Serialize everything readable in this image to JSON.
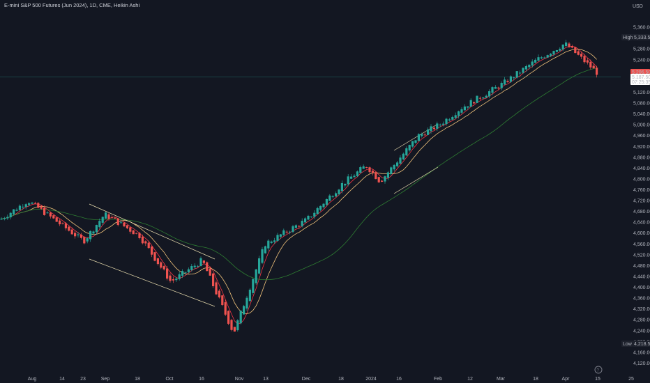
{
  "header": {
    "title": "E-mini S&P 500 Futures (Jun 2024), 1D, CME, Heikin Ashi",
    "currency": "USD"
  },
  "labels": {
    "high_tag": "High",
    "high_value": "5,333.50",
    "low_tag": "Low",
    "low_value": "4,218.50",
    "last_price": "5,206.50",
    "last_price2": "5,187.50",
    "countdown": "07:25:35"
  },
  "colors": {
    "up": "#26a69a",
    "down": "#ef5350",
    "ma_fast": "#f23645",
    "ma_mid": "#f0c27b",
    "ma_slow": "#2e7d32",
    "trendline": "#e8dcae",
    "background": "#131722"
  },
  "chart_data": {
    "type": "candlestick",
    "title": "E-mini S&P 500 Futures (Jun 2024), 1D, CME, Heikin Ashi",
    "y_axis": {
      "min": 4080,
      "max": 5440,
      "ticks": [
        "5,360.00",
        "5,320.00",
        "5,280.00",
        "5,240.00",
        "5,200.00",
        "5,160.00",
        "5,120.00",
        "5,080.00",
        "5,040.00",
        "5,000.00",
        "4,960.00",
        "4,920.00",
        "4,880.00",
        "4,840.00",
        "4,800.00",
        "4,760.00",
        "4,720.00",
        "4,680.00",
        "4,640.00",
        "4,600.00",
        "4,560.00",
        "4,520.00",
        "4,480.00",
        "4,440.00",
        "4,400.00",
        "4,360.00",
        "4,320.00",
        "4,280.00",
        "4,240.00",
        "4,200.00",
        "4,160.00",
        "4,120.00"
      ]
    },
    "x_axis": {
      "ticks": [
        "Aug",
        "14",
        "23",
        "Sep",
        "18",
        "Oct",
        "16",
        "Nov",
        "13",
        "Dec",
        "18",
        "2024",
        "16",
        "Feb",
        "12",
        "Mar",
        "18",
        "Apr",
        "15",
        "25"
      ]
    },
    "series": [
      {
        "type": "ohlc_heikin_ashi",
        "key_points": [
          [
            "start",
            4650
          ],
          [
            "Aug-mid",
            4720
          ],
          [
            "Aug-23",
            4570
          ],
          [
            "Sep",
            4670
          ],
          [
            "Sep-18",
            4590
          ],
          [
            "Oct",
            4420
          ],
          [
            "Oct-16",
            4500
          ],
          [
            "Nov",
            4230
          ],
          [
            "Nov-13",
            4560
          ],
          [
            "Dec",
            4650
          ],
          [
            "Dec-18",
            4780
          ],
          [
            "2024",
            4850
          ],
          [
            "Jan-16",
            4790
          ],
          [
            "Jan-end",
            4960
          ],
          [
            "Feb",
            5000
          ],
          [
            "Feb-12",
            5060
          ],
          [
            "Mar",
            5150
          ],
          [
            "Mar-18",
            5240
          ],
          [
            "Apr",
            5300
          ],
          [
            "Apr-15",
            5190
          ]
        ]
      },
      {
        "type": "moving_average",
        "label": "fast"
      },
      {
        "type": "moving_average",
        "label": "mid"
      },
      {
        "type": "moving_average",
        "label": "slow"
      }
    ],
    "grid": false,
    "annotations": [
      "channel-downtrend",
      "channel-uptrend"
    ]
  }
}
